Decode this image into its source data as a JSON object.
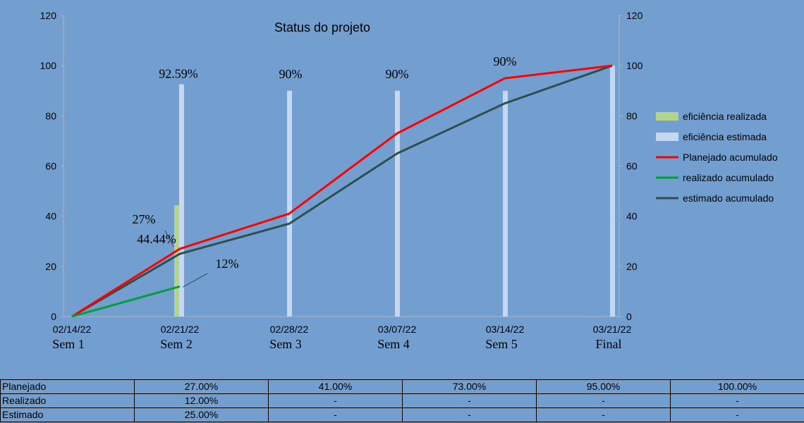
{
  "chart_data": {
    "type": "bar+line",
    "title": "Status do projeto",
    "categories": [
      "02/14/22",
      "02/21/22",
      "02/28/22",
      "03/07/22",
      "03/14/22",
      "03/21/22"
    ],
    "category_labels": [
      "Sem 1",
      "Sem 2",
      "Sem 3",
      "Sem 4",
      "Sem 5",
      "Final"
    ],
    "ylim": [
      0,
      120
    ],
    "yticks": [
      0,
      20,
      40,
      60,
      80,
      100,
      120
    ],
    "bar_series": [
      {
        "name": "eficiência realizada",
        "color": "#b4d48c",
        "values": [
          null,
          44.44,
          null,
          null,
          null,
          null
        ]
      },
      {
        "name": "eficiência estimada",
        "color": "#c6d8ef",
        "values": [
          null,
          92.59,
          90,
          90,
          90,
          100
        ]
      }
    ],
    "line_series": [
      {
        "name": "Planejado acumulado",
        "color": "#ff0000",
        "values": [
          0,
          27,
          41,
          73,
          95,
          100
        ]
      },
      {
        "name": "realizado acumulado",
        "color": "#00a03c",
        "values": [
          0,
          12,
          null,
          null,
          null,
          null
        ]
      },
      {
        "name": "estimado acumulado",
        "color": "#2f4f4f",
        "values": [
          0,
          25,
          37,
          65,
          85,
          100
        ]
      }
    ],
    "data_labels": [
      {
        "id": "lbl-est-2",
        "text": "92.59%"
      },
      {
        "id": "lbl-est-3",
        "text": "90%"
      },
      {
        "id": "lbl-est-4",
        "text": "90%"
      },
      {
        "id": "lbl-est-5",
        "text": "90%"
      },
      {
        "id": "lbl-real-bar",
        "text": "44.44%"
      },
      {
        "id": "lbl-plan-2",
        "text": "27%"
      },
      {
        "id": "lbl-real-2",
        "text": "12%"
      }
    ],
    "legend_position": "right"
  },
  "table": {
    "rows": [
      {
        "label": "Planejado",
        "cells": [
          "27.00%",
          "41.00%",
          "73.00%",
          "95.00%",
          "100.00%"
        ]
      },
      {
        "label": "Realizado",
        "cells": [
          "12.00%",
          "-",
          "-",
          "-",
          "-"
        ]
      },
      {
        "label": "Estimado",
        "cells": [
          "25.00%",
          "-",
          "-",
          "-",
          "-"
        ]
      }
    ]
  }
}
